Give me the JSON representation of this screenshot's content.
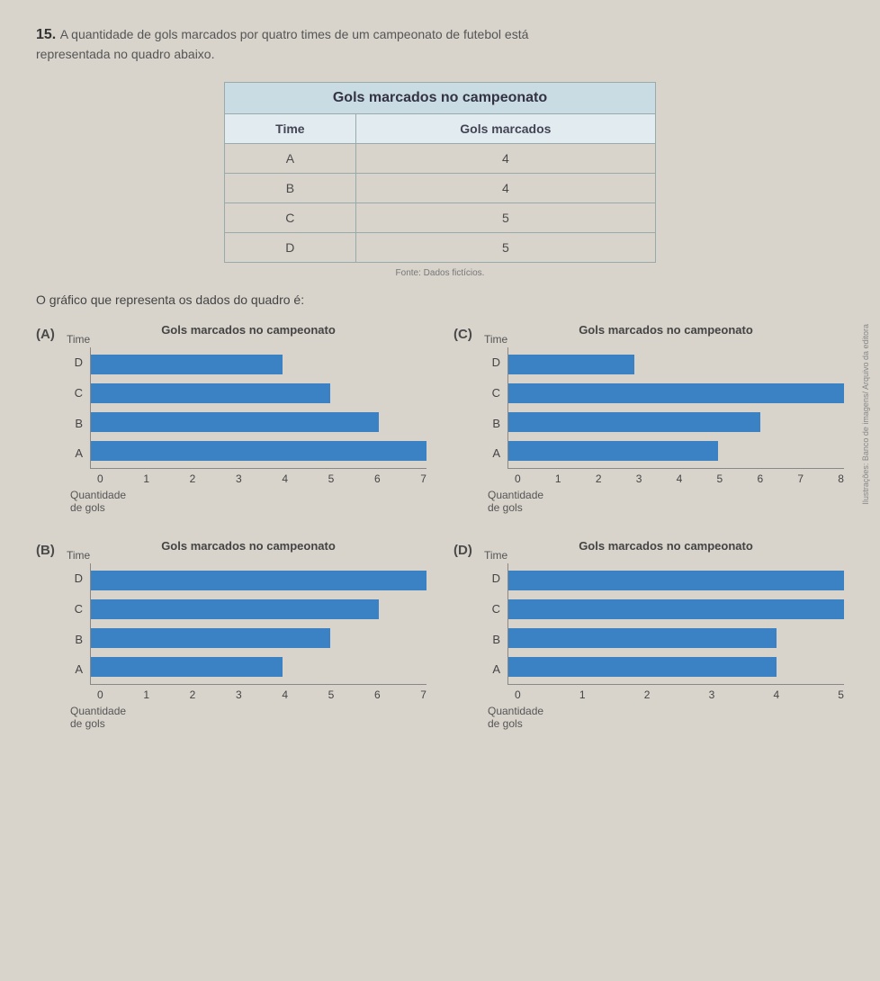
{
  "question": {
    "number": "15.",
    "text_line1": "A quantidade de gols marcados por quatro times de um campeonato de futebol está",
    "text_line2": "representada no quadro abaixo."
  },
  "table": {
    "title": "Gols marcados no campeonato",
    "col1": "Time",
    "col2": "Gols marcados",
    "rows": [
      {
        "team": "A",
        "goals": "4"
      },
      {
        "team": "B",
        "goals": "4"
      },
      {
        "team": "C",
        "goals": "5"
      },
      {
        "team": "D",
        "goals": "5"
      }
    ],
    "fonte": "Fonte: Dados fictícios."
  },
  "prompt": "O gráfico que representa os dados do quadro é:",
  "chart_common": {
    "title": "Gols marcados no campeonato",
    "y_axis_title": "Time",
    "x_axis_title_l1": "Quantidade",
    "x_axis_title_l2": "de gols",
    "bar_color": "#3b82c4",
    "teams": [
      "D",
      "C",
      "B",
      "A"
    ]
  },
  "options": {
    "A": {
      "label": "(A)",
      "x_ticks": [
        "0",
        "1",
        "2",
        "3",
        "4",
        "5",
        "6",
        "7"
      ],
      "x_max": 7,
      "values": {
        "D": 4,
        "C": 5,
        "B": 6,
        "A": 7
      }
    },
    "B": {
      "label": "(B)",
      "x_ticks": [
        "0",
        "1",
        "2",
        "3",
        "4",
        "5",
        "6",
        "7"
      ],
      "x_max": 7,
      "values": {
        "D": 7,
        "C": 6,
        "B": 5,
        "A": 4
      }
    },
    "C": {
      "label": "(C)",
      "x_ticks": [
        "0",
        "1",
        "2",
        "3",
        "4",
        "5",
        "6",
        "7",
        "8"
      ],
      "x_max": 8,
      "values": {
        "D": 3,
        "C": 8,
        "B": 6,
        "A": 5
      }
    },
    "D": {
      "label": "(D)",
      "x_ticks": [
        "0",
        "1",
        "2",
        "3",
        "4",
        "5"
      ],
      "x_max": 5,
      "values": {
        "D": 5,
        "C": 5,
        "B": 4,
        "A": 4
      }
    }
  },
  "side_credit": "Ilustrações: Banco de imagens/\nArquivo da editora"
}
